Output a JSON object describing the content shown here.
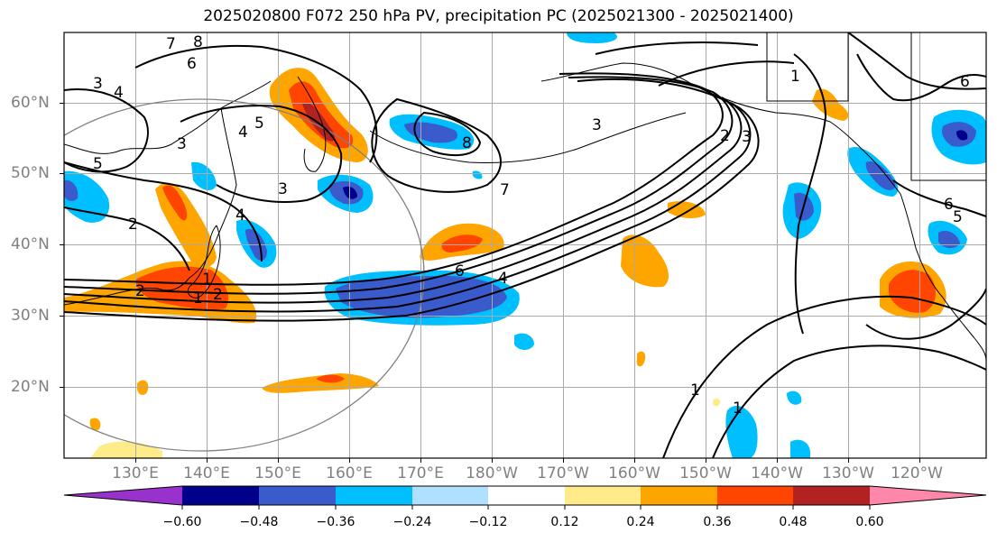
{
  "title": "2025020800 F072 250 hPa PV, precipitation PC (2025021300 - 2025021400)",
  "lon_labels": [
    "130°E",
    "140°E",
    "150°E",
    "160°E",
    "170°E",
    "180°W",
    "170°W",
    "160°W",
    "150°W",
    "140°W",
    "130°W",
    "120°W"
  ],
  "lat_labels": [
    "60°N",
    "50°N",
    "40°N",
    "30°N",
    "20°N"
  ],
  "colorbar": {
    "labels": [
      "−0.60",
      "−0.48",
      "−0.36",
      "−0.24",
      "−0.12",
      "0.12",
      "0.24",
      "0.36",
      "0.48",
      "0.60"
    ],
    "colors": [
      "#9932cc",
      "#00008b",
      "#3a5bcc",
      "#00bfff",
      "#b0e0ff",
      "#ffffff",
      "#ffeb8a",
      "#ffa500",
      "#ff4500",
      "#b22222",
      "#ff88aa"
    ]
  },
  "contour_labels": [
    "8",
    "7",
    "6",
    "3",
    "4",
    "5",
    "4",
    "3",
    "2",
    "4",
    "5",
    "3",
    "2",
    "1",
    "2",
    "1",
    "8",
    "7",
    "6",
    "4",
    "3",
    "2",
    "3",
    "1",
    "1",
    "1",
    "6",
    "5",
    "6"
  ],
  "legend": {
    "pc_colors": {
      "strong_neg": "#00008b",
      "neg": "#3a5bcc",
      "mid_neg": "#00bfff",
      "weak_neg": "#b0e0ff",
      "weak_pos": "#ffeb8a",
      "pos": "#ffa500",
      "mid_pos": "#ff4500",
      "strong_pos": "#b22222"
    }
  }
}
